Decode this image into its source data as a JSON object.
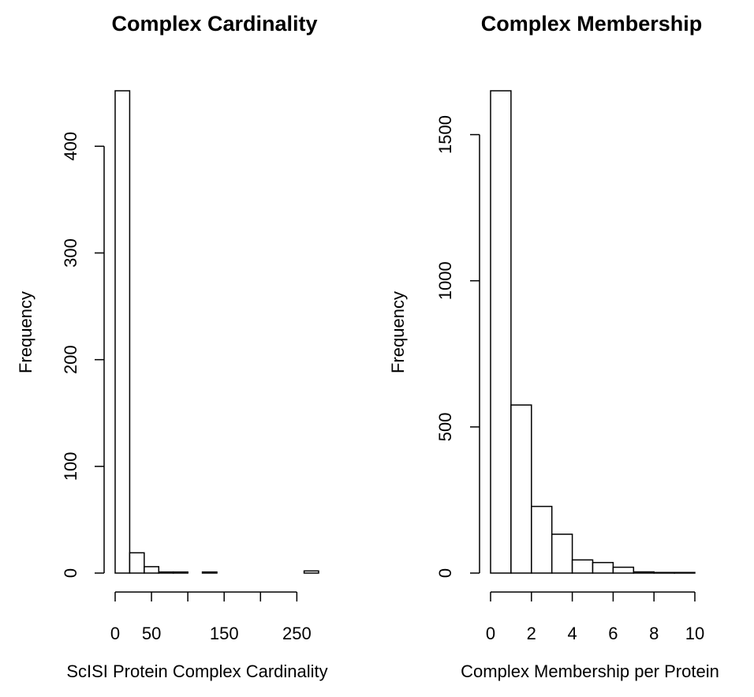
{
  "chart_data": [
    {
      "type": "bar",
      "subtype": "histogram",
      "title": "Complex Cardinality",
      "xlabel": "ScISI Protein Complex Cardinality",
      "ylabel": "Frequency",
      "bin_width": 20,
      "bins": [
        {
          "x0": 0,
          "x1": 20,
          "value": 452
        },
        {
          "x0": 20,
          "x1": 40,
          "value": 19
        },
        {
          "x0": 40,
          "x1": 60,
          "value": 6
        },
        {
          "x0": 60,
          "x1": 80,
          "value": 1
        },
        {
          "x0": 80,
          "x1": 100,
          "value": 1
        },
        {
          "x0": 100,
          "x1": 120,
          "value": 0
        },
        {
          "x0": 120,
          "x1": 140,
          "value": 1
        },
        {
          "x0": 140,
          "x1": 160,
          "value": 0
        },
        {
          "x0": 160,
          "x1": 180,
          "value": 0
        },
        {
          "x0": 180,
          "x1": 200,
          "value": 0
        },
        {
          "x0": 200,
          "x1": 220,
          "value": 0
        },
        {
          "x0": 220,
          "x1": 240,
          "value": 0
        },
        {
          "x0": 240,
          "x1": 260,
          "value": 0
        },
        {
          "x0": 260,
          "x1": 280,
          "value": 2
        }
      ],
      "xlim": [
        0,
        280
      ],
      "ylim": [
        0,
        452
      ],
      "x_ticks": [
        0,
        50,
        100,
        150,
        200,
        250
      ],
      "x_tick_labels": [
        "0",
        "50",
        "",
        "150",
        "",
        "250"
      ],
      "y_ticks": [
        0,
        100,
        200,
        300,
        400
      ],
      "y_tick_labels": [
        "0",
        "100",
        "200",
        "300",
        "400"
      ],
      "grid": false,
      "legend": "none"
    },
    {
      "type": "bar",
      "subtype": "histogram",
      "title": "Complex Membership",
      "xlabel": "Complex Membership per Protein",
      "ylabel": "Frequency",
      "bin_width": 1,
      "bins": [
        {
          "x0": 0,
          "x1": 1,
          "value": 1650
        },
        {
          "x0": 1,
          "x1": 2,
          "value": 575
        },
        {
          "x0": 2,
          "x1": 3,
          "value": 228
        },
        {
          "x0": 3,
          "x1": 4,
          "value": 133
        },
        {
          "x0": 4,
          "x1": 5,
          "value": 45
        },
        {
          "x0": 5,
          "x1": 6,
          "value": 36
        },
        {
          "x0": 6,
          "x1": 7,
          "value": 20
        },
        {
          "x0": 7,
          "x1": 8,
          "value": 4
        },
        {
          "x0": 8,
          "x1": 9,
          "value": 2
        },
        {
          "x0": 9,
          "x1": 10,
          "value": 2
        }
      ],
      "xlim": [
        0,
        10
      ],
      "ylim": [
        0,
        1650
      ],
      "x_ticks": [
        0,
        2,
        4,
        6,
        8,
        10
      ],
      "x_tick_labels": [
        "0",
        "2",
        "4",
        "6",
        "8",
        "10"
      ],
      "y_ticks": [
        0,
        500,
        1000,
        1500
      ],
      "y_tick_labels": [
        "0",
        "500",
        "1000",
        "1500"
      ],
      "grid": false,
      "legend": "none"
    }
  ]
}
